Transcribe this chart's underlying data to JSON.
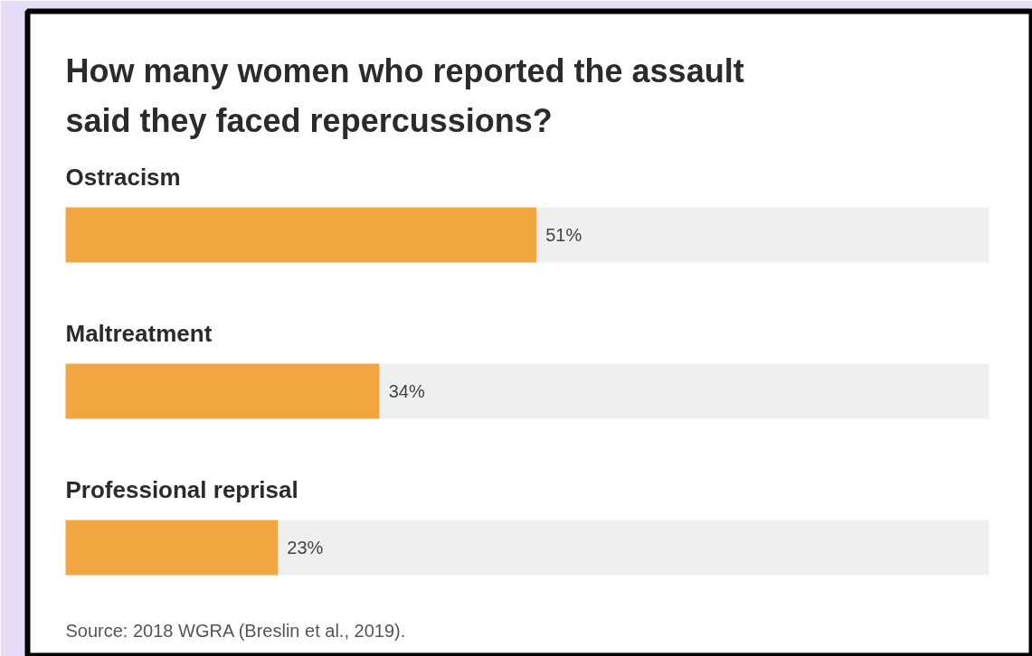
{
  "chart_data": {
    "type": "bar",
    "orientation": "horizontal",
    "stacked": true,
    "title": "How many women who reported the assault said they faced repercussions?",
    "categories": [
      "Ostracism",
      "Maltreatment",
      "Professional reprisal"
    ],
    "series": [
      {
        "color": "#f2a641",
        "values": [
          51,
          34,
          23
        ],
        "value_labels": [
          "51%",
          "34%",
          "23%"
        ]
      },
      {
        "color": "#efefef",
        "values": [
          49,
          66,
          77
        ]
      }
    ],
    "xlim": [
      0,
      100
    ],
    "annotations": [
      "Source: 2018 WGRA (Breslin et al., 2019)."
    ]
  }
}
